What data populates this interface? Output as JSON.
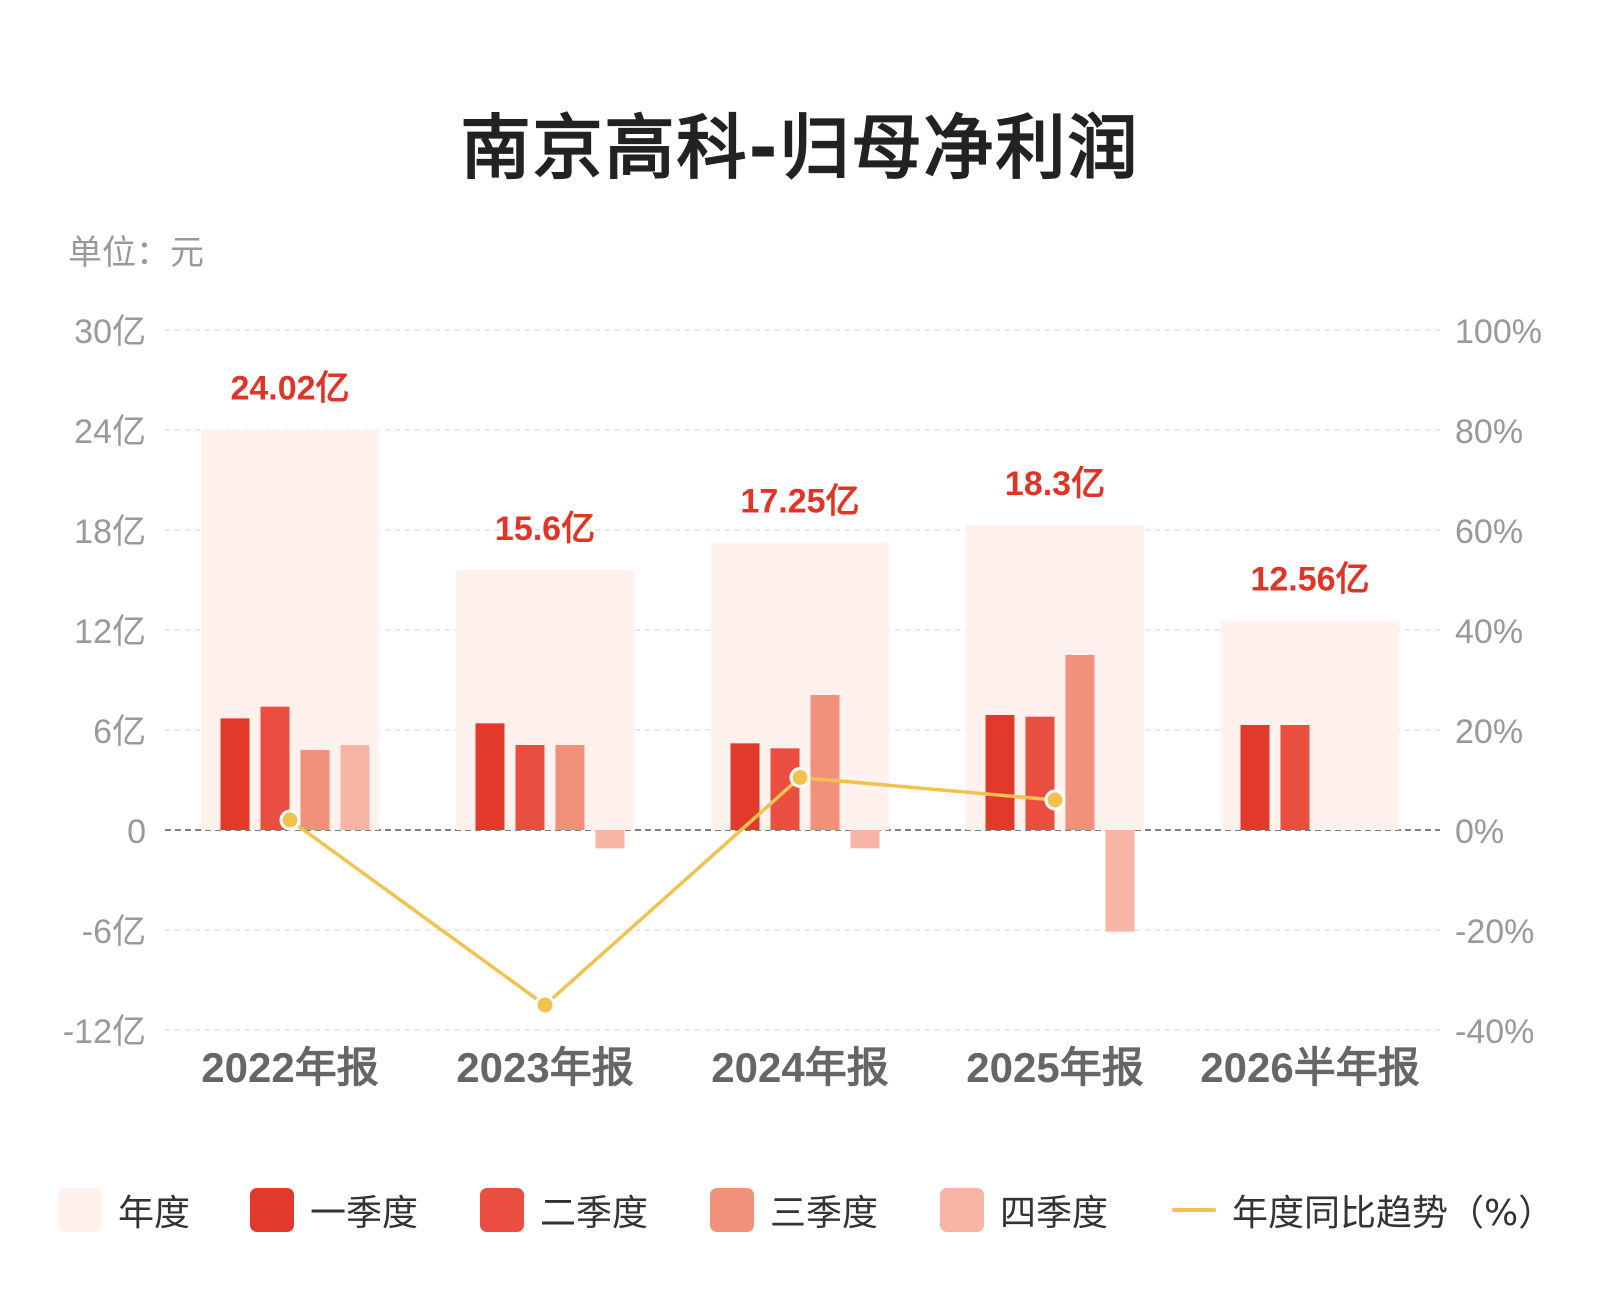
{
  "title": "南京高科-归母净利润",
  "unit_label": "单位：元",
  "chart_data": {
    "type": "bar",
    "categories": [
      "2022年报",
      "2023年报",
      "2024年报",
      "2025年报",
      "2026半年报"
    ],
    "left_axis": {
      "ticks": [
        "30亿",
        "24亿",
        "18亿",
        "12亿",
        "6亿",
        "0",
        "-6亿",
        "-12亿"
      ],
      "ylim": [
        -12,
        30
      ],
      "unit": "亿"
    },
    "right_axis": {
      "ticks": [
        "100%",
        "80%",
        "60%",
        "40%",
        "20%",
        "0%",
        "-20%",
        "-40%"
      ],
      "ylim": [
        -40,
        100
      ]
    },
    "annual": {
      "name": "年度",
      "values": [
        24.02,
        15.6,
        17.25,
        18.3,
        12.56
      ],
      "labels": [
        "24.02亿",
        "15.6亿",
        "17.25亿",
        "18.3亿",
        "12.56亿"
      ]
    },
    "series": [
      {
        "name": "一季度",
        "values": [
          6.7,
          6.4,
          5.2,
          6.9,
          6.3
        ]
      },
      {
        "name": "二季度",
        "values": [
          7.4,
          5.1,
          4.9,
          6.8,
          6.3
        ]
      },
      {
        "name": "三季度",
        "values": [
          4.8,
          5.1,
          8.1,
          10.5,
          null
        ]
      },
      {
        "name": "四季度",
        "values": [
          5.1,
          -1.1,
          -1.1,
          -6.1,
          null
        ]
      }
    ],
    "yoy_trend": {
      "name": "年度同比趋势（%）",
      "values": [
        2,
        -35,
        10.5,
        6
      ]
    },
    "colors": {
      "annual": "#fff1ed",
      "q1": "#e23a2a",
      "q2": "#ea4e40",
      "q3": "#f1907b",
      "q4": "#f8b4a5",
      "line": "#f2c14e",
      "annual_label": "#e03526"
    },
    "grid": true,
    "legend_position": "bottom"
  },
  "legend": [
    {
      "key": "annual",
      "label": "年度",
      "icon": "swatch"
    },
    {
      "key": "q1",
      "label": "一季度",
      "icon": "swatch"
    },
    {
      "key": "q2",
      "label": "二季度",
      "icon": "swatch"
    },
    {
      "key": "q3",
      "label": "三季度",
      "icon": "swatch"
    },
    {
      "key": "q4",
      "label": "四季度",
      "icon": "swatch"
    },
    {
      "key": "line",
      "label": "年度同比趋势（%）",
      "icon": "line"
    }
  ]
}
